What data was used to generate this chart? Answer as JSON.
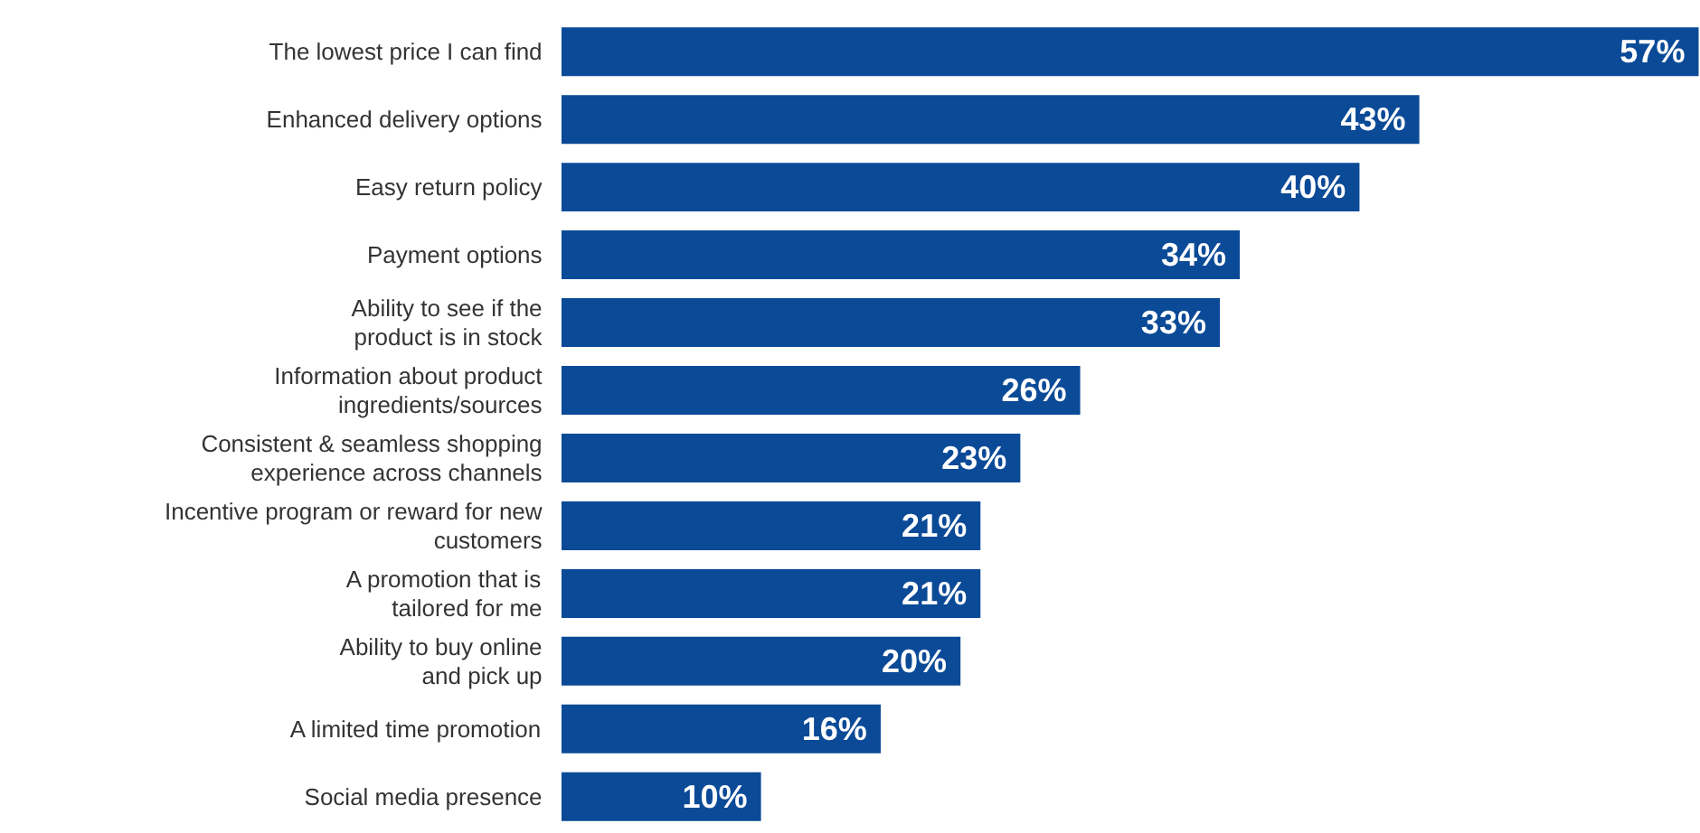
{
  "chart_data": {
    "type": "bar",
    "orientation": "horizontal",
    "data_labels": true,
    "categories": [
      "The lowest price I can find",
      "Enhanced delivery options",
      "Easy return policy",
      "Payment options",
      "Ability to see if the\nproduct is in stock",
      "Information about product\ningredients/sources",
      "Consistent & seamless shopping\nexperience across channels",
      "Incentive program or reward for new\ncustomers",
      "A promotion that is\ntailored for me",
      "Ability to buy online\nand pick up",
      "A limited time promotion",
      "Social media presence"
    ],
    "values": [
      57,
      43,
      40,
      34,
      33,
      26,
      23,
      21,
      21,
      20,
      16,
      10
    ],
    "value_labels": [
      "57%",
      "43%",
      "40%",
      "34%",
      "33%",
      "26%",
      "23%",
      "21%",
      "21%",
      "20%",
      "16%",
      "10%"
    ],
    "color": "#0b4a97"
  }
}
